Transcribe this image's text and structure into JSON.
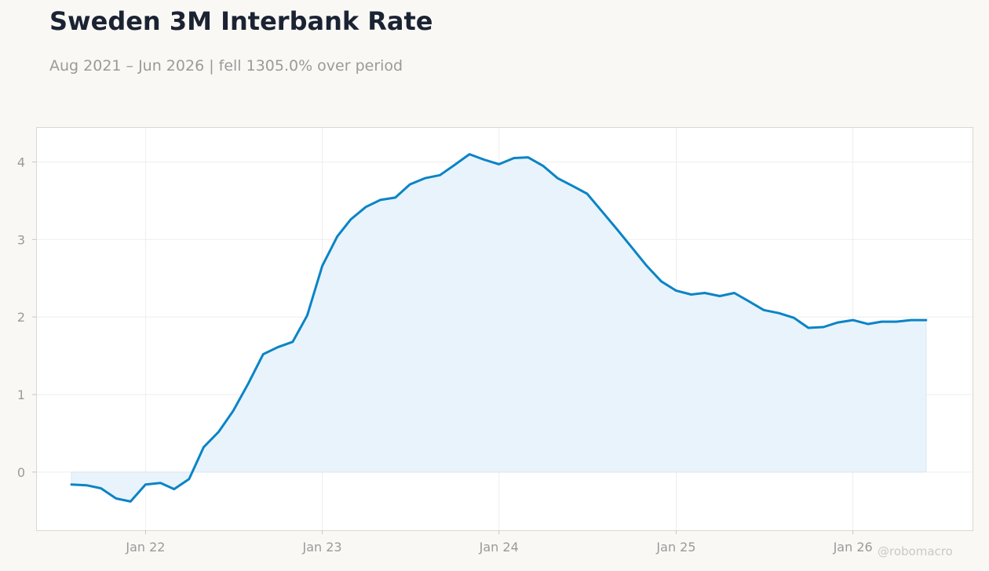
{
  "header": {
    "title": "Sweden 3M Interbank Rate",
    "subtitle": "Aug 2021 – Jun 2026 | fell 1305.0% over period"
  },
  "watermark": "@robomacro",
  "colors": {
    "line": "#0a84c6",
    "fill": "#e9f3fb",
    "grid": "#eeeeee",
    "frame": "#dad8d0",
    "tick_text": "#9a9a9a"
  },
  "chart_data": {
    "type": "area",
    "xlabel": "",
    "ylabel": "",
    "ylim": [
      -0.75,
      4.45
    ],
    "xlim": [
      "2021-05-20",
      "2026-09-05"
    ],
    "grid": true,
    "legend": "none",
    "yticks": [
      {
        "value": 0,
        "label": "0"
      },
      {
        "value": 1,
        "label": "1"
      },
      {
        "value": 2,
        "label": "2"
      },
      {
        "value": 3,
        "label": "3"
      },
      {
        "value": 4,
        "label": "4"
      }
    ],
    "xticks": [
      {
        "date": "2022-01-01",
        "label": "Jan 22"
      },
      {
        "date": "2023-01-01",
        "label": "Jan 23"
      },
      {
        "date": "2024-01-01",
        "label": "Jan 24"
      },
      {
        "date": "2025-01-01",
        "label": "Jan 25"
      },
      {
        "date": "2026-01-01",
        "label": "Jan 26"
      }
    ],
    "series": [
      {
        "points": [
          [
            "2021-08-01",
            -0.16
          ],
          [
            "2021-09-01",
            -0.17
          ],
          [
            "2021-10-01",
            -0.21
          ],
          [
            "2021-11-01",
            -0.34
          ],
          [
            "2021-12-01",
            -0.38
          ],
          [
            "2022-01-01",
            -0.16
          ],
          [
            "2022-02-01",
            -0.14
          ],
          [
            "2022-03-01",
            -0.22
          ],
          [
            "2022-04-01",
            -0.09
          ],
          [
            "2022-05-01",
            0.32
          ],
          [
            "2022-06-01",
            0.52
          ],
          [
            "2022-07-01",
            0.79
          ],
          [
            "2022-08-01",
            1.14
          ],
          [
            "2022-09-01",
            1.52
          ],
          [
            "2022-10-01",
            1.61
          ],
          [
            "2022-11-01",
            1.68
          ],
          [
            "2022-12-01",
            2.02
          ],
          [
            "2023-01-01",
            2.66
          ],
          [
            "2023-02-01",
            3.04
          ],
          [
            "2023-03-01",
            3.26
          ],
          [
            "2023-04-01",
            3.42
          ],
          [
            "2023-05-01",
            3.51
          ],
          [
            "2023-06-01",
            3.54
          ],
          [
            "2023-07-01",
            3.71
          ],
          [
            "2023-08-01",
            3.79
          ],
          [
            "2023-09-01",
            3.83
          ],
          [
            "2023-10-01",
            3.96
          ],
          [
            "2023-11-01",
            4.1
          ],
          [
            "2023-12-01",
            4.03
          ],
          [
            "2024-01-01",
            3.97
          ],
          [
            "2024-02-01",
            4.05
          ],
          [
            "2024-03-01",
            4.06
          ],
          [
            "2024-04-01",
            3.95
          ],
          [
            "2024-05-01",
            3.79
          ],
          [
            "2024-06-01",
            3.69
          ],
          [
            "2024-07-01",
            3.59
          ],
          [
            "2024-08-01",
            3.36
          ],
          [
            "2024-09-01",
            3.13
          ],
          [
            "2024-10-01",
            2.9
          ],
          [
            "2024-11-01",
            2.66
          ],
          [
            "2024-12-01",
            2.46
          ],
          [
            "2025-01-01",
            2.34
          ],
          [
            "2025-02-01",
            2.29
          ],
          [
            "2025-03-01",
            2.31
          ],
          [
            "2025-04-01",
            2.27
          ],
          [
            "2025-05-01",
            2.31
          ],
          [
            "2025-06-01",
            2.2
          ],
          [
            "2025-07-01",
            2.09
          ],
          [
            "2025-08-01",
            2.05
          ],
          [
            "2025-09-01",
            1.99
          ],
          [
            "2025-10-01",
            1.86
          ],
          [
            "2025-11-01",
            1.87
          ],
          [
            "2025-12-01",
            1.93
          ],
          [
            "2026-01-01",
            1.96
          ],
          [
            "2026-02-01",
            1.91
          ],
          [
            "2026-03-01",
            1.94
          ],
          [
            "2026-04-01",
            1.94
          ],
          [
            "2026-05-01",
            1.96
          ],
          [
            "2026-06-01",
            1.96
          ]
        ]
      }
    ]
  }
}
